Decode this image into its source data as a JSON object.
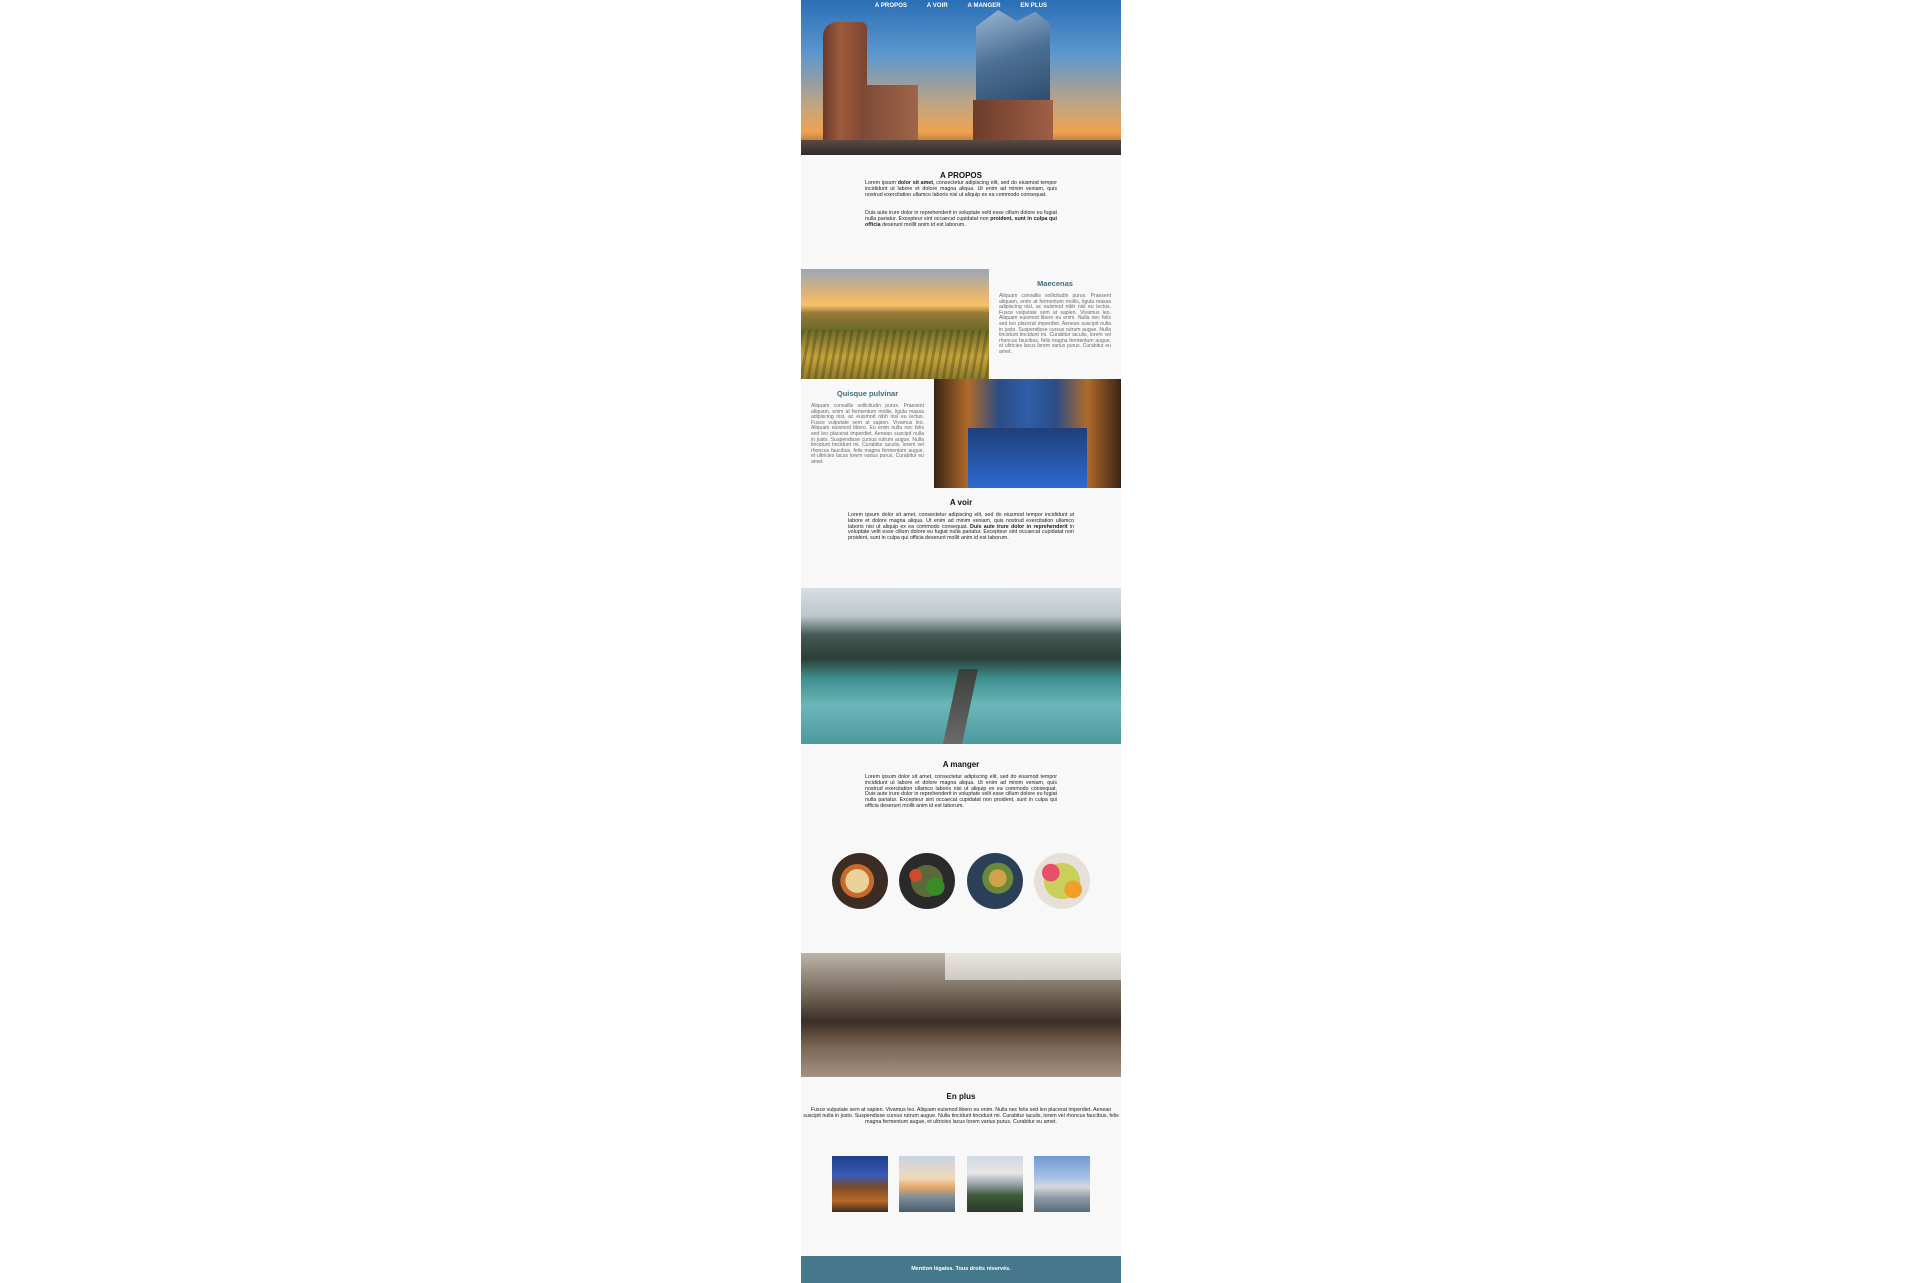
{
  "nav": {
    "items": [
      "A PROPOS",
      "A VOIR",
      "A MANGER",
      "EN PLUS"
    ]
  },
  "apropos": {
    "title": "A PROPOS",
    "p1_pre": "Lorem ipsum ",
    "p1_bold": "dolor sit amet",
    "p1_post": ", consectetur adipiscing elit, sed do eiusmod tempor incididunt ut labore et dolore magna aliqua. Ut enim ad minim veniam, quis nostrud exercitation ullamco laboris nisi ut aliquip ex ea commodo consequat.",
    "p2_pre": "Duis aute irure dolor in reprehenderit in voluptate velit esse cillum dolore eu fugiat nulla pariatur. Excepteur sint occaecat cupidatat non ",
    "p2_bold": "proident, sunt in culpa qui officia",
    "p2_post": " deserunt mollit anim id est laborum."
  },
  "maecenas": {
    "title": "Maecenas",
    "text": "Aliquam convallis sollicitudin purus. Praesent aliquam, enim at fermentum mollis, ligula massa adipiscing nisl, ac euismod nibh nisl eu lectus. Fusce vulputate sem at sapien. Vivamus leo. Aliquam euismod libero eu enim. Nulla nec felis sed leo placerat imperdiet. Aenean suscipit nulla in justo. Suspendisse cursus rutrum augue. Nulla tincidunt tincidunt mi. Curabitur iaculis, lorem vel rhoncus faucibus, felis magna fermentum augue, et ultricies lacus lorem varius purus. Curabitur eu amet."
  },
  "quisque": {
    "title": "Quisque pulvinar",
    "text": "Aliquam convallis sollicitudin purus. Praesent aliquam, enim at fermentum mollis, ligula massa adipiscing nisl, ac euismod nibh nisl eu lectus. Fusce vulputate sem at sapien. Vivamus leo. Aliquam euismod libero. Eu enim nulla nec felis sed leo placerat imperdiet. Aenean suscipit nulla in justo. Suspendisse cursus rutrum augue. Nulla tincidunt tincidunt mi. Curabitur iaculis, lorem vel rhoncus faucibus, felis magna fermentum augue, et ultricies lacus lorem varius purus. Curabitur eu amet."
  },
  "avoir": {
    "title": "A voir",
    "text_pre": "Lorem ipsum dolor sit amet, consectetur adipiscing elit, sed do eiusmod tempor incididunt ut labore et dolore magna aliqua. Ut enim ad minim veniam, quis nostrud exercitation ullamco laboris nisi ut aliquip ex ea commodo consequat. ",
    "text_bold": "Duis aute irure dolor in reprehenderit",
    "text_post": " in voluptate velit esse cillum dolore eu fugiat nulla pariatur. Excepteur sint occaecat cupidatat non proident, sunt in culpa qui officia deserunt mollit anim id est laborum."
  },
  "amanger": {
    "title": "A manger",
    "text": "Lorem ipsum dolor sit amet, consectetur adipiscing elit, sed do eiusmod tempor incididunt ut labore et dolore magna aliqua. Ut enim ad minim veniam, quis nostrud exercitation ullamco laboris nisi ut aliquip ex ea commodo consequat. Duis aute irure dolor in reprehenderit in voluptate velit esse cillum dolore eu fugiat nulla pariatur. Excepteur sint occaecat cupidatat non proident, sunt in culpa qui officia deserunt mollit anim id est laborum."
  },
  "enplus": {
    "title": "En plus",
    "text": "Fusce vulputate sem at sapien. Vivamus leo. Aliquam euismod libero eu enim. Nulla nec felis sed leo placerat imperdiet. Aenean suscipit nulla in justo. Suspendisse cursus rutrum augue. Nulla tincidunt tincidunt mi. Curabitur iaculis, lorem vel rhoncus faucibus, felis magna fermentum augue, et ultricies lacus lorem varius purus. Curabitur eu amet."
  },
  "footer": {
    "text": "Mention légales. Tous droits réservés."
  },
  "colors": {
    "accent": "#44788a",
    "heading_blue": "#3e6f83",
    "page_bg": "#f8f8f8"
  }
}
